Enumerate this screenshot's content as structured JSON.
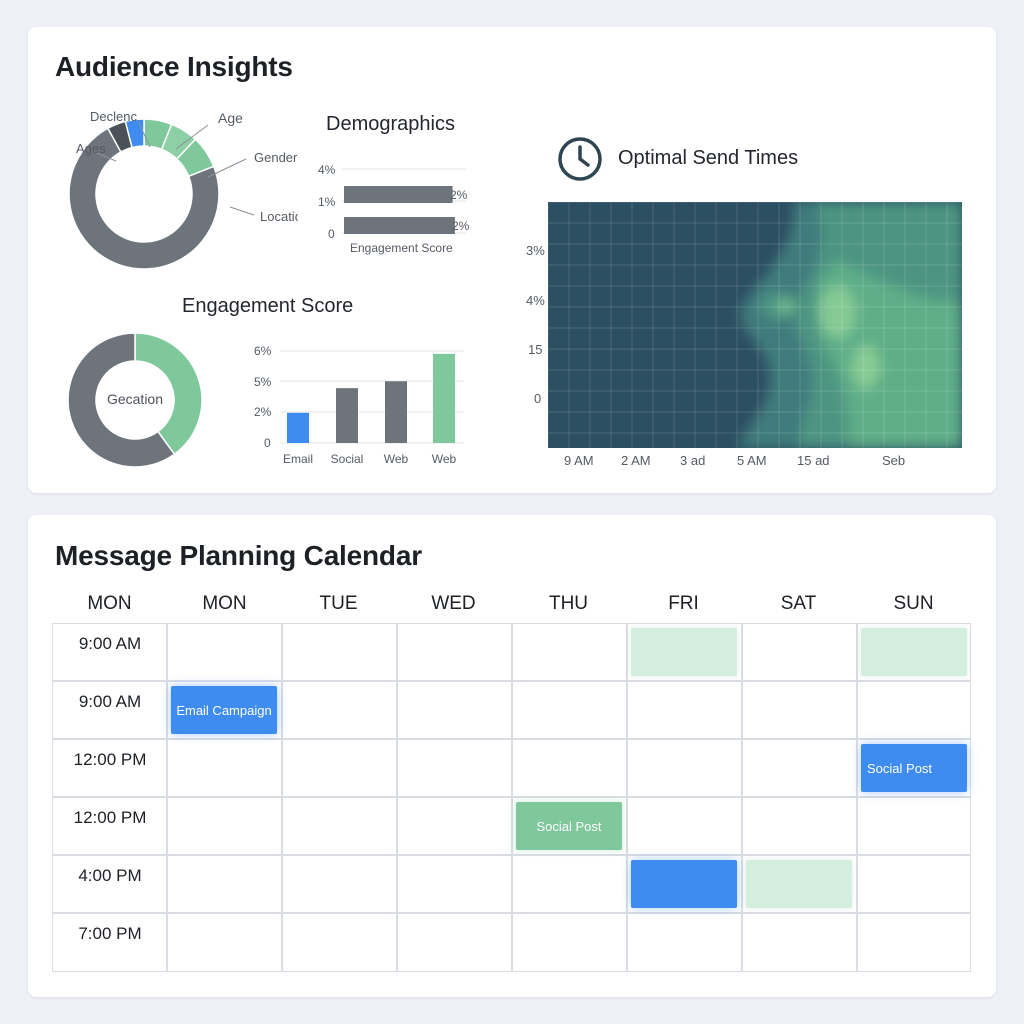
{
  "insights": {
    "title": "Audience Insights",
    "donut1": {
      "labels": [
        "Declenc",
        "Ages",
        "Age",
        "Gender",
        "Location"
      ],
      "segments": [
        {
          "name": "Age",
          "value": 6,
          "color": "#7ec89c"
        },
        {
          "name": "Gender",
          "value": 6,
          "color": "#8dd0a6"
        },
        {
          "name": "Location",
          "value": 7,
          "color": "#7ec89c"
        },
        {
          "name": "Ages",
          "value": 73,
          "color": "#6e747c"
        },
        {
          "name": "dark",
          "value": 4,
          "color": "#4b5159"
        },
        {
          "name": "Declenc",
          "value": 4,
          "color": "#3f8cf0"
        }
      ]
    },
    "demographics": {
      "title": "Demographics",
      "tick_labels": [
        "4%",
        "1%",
        "0"
      ],
      "bar_labels": [
        "2%",
        "2%"
      ],
      "bar_values": [
        0.92,
        0.94
      ],
      "xlabel": "Engagement Score"
    },
    "engagement": {
      "title": "Engagement Score",
      "donut_center": "Gecation",
      "donut_segments": [
        {
          "name": "green",
          "value": 40,
          "color": "#7ec89c"
        },
        {
          "name": "gray",
          "value": 60,
          "color": "#6e747c"
        }
      ]
    },
    "send_times": {
      "title": "Optimal Send Times",
      "icon": "clock-icon",
      "y_ticks": [
        "3%",
        "4%",
        "15",
        "0"
      ],
      "x_ticks": [
        "9 AM",
        "2 AM",
        "3 ad",
        "5 AM",
        "15 ad",
        "Seb"
      ]
    }
  },
  "chart_data": {
    "type": "bar",
    "categories": [
      "Email",
      "Social",
      "Web",
      "Web"
    ],
    "values": [
      2.2,
      4.0,
      4.5,
      6.5
    ],
    "colors": [
      "#3f8cf0",
      "#6e747c",
      "#6e747c",
      "#7ec89c"
    ],
    "y_tick_labels": [
      "6%",
      "5%",
      "2%",
      "0"
    ],
    "ylim": [
      0,
      7
    ]
  },
  "calendar": {
    "title": "Message Planning Calendar",
    "days": [
      "MON",
      "MON",
      "TUE",
      "WED",
      "THU",
      "FRI",
      "SAT",
      "SUN"
    ],
    "times": [
      "9:00 AM",
      "9:00 AM",
      "12:00 PM",
      "12:00 PM",
      "4:00 PM",
      "7:00 PM"
    ],
    "events": [
      {
        "label": "",
        "style": "light",
        "col": 5,
        "row": 0
      },
      {
        "label": "",
        "style": "light",
        "col": 7,
        "row": 0
      },
      {
        "label": "Email Campaign",
        "style": "blue",
        "col": 1,
        "row": 1
      },
      {
        "label": "Social Post",
        "style": "blue",
        "col": 7,
        "row": 2
      },
      {
        "label": "Social Post",
        "style": "green",
        "col": 4,
        "row": 3
      },
      {
        "label": "",
        "style": "blue",
        "col": 5,
        "row": 4
      },
      {
        "label": "",
        "style": "light",
        "col": 6,
        "row": 4
      }
    ]
  }
}
